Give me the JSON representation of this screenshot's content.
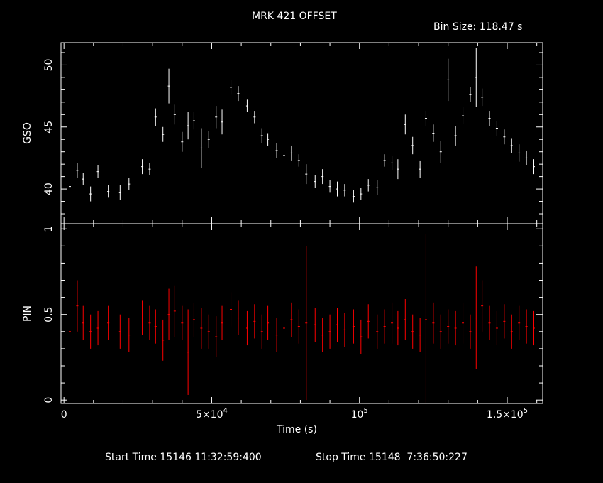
{
  "chart_data": {
    "type": "line",
    "title": "MRK 421 OFFSET",
    "bin_size_label": "Bin Size:",
    "bin_size_value": "118.47 s",
    "xlabel": "Time (s)",
    "xlim": [
      -1000,
      162000
    ],
    "x_ticks": [
      {
        "value": 0,
        "label": "0",
        "exp": ""
      },
      {
        "value": 50000,
        "label": "5×10",
        "exp": "4"
      },
      {
        "value": 100000,
        "label": "10",
        "exp": "5"
      },
      {
        "value": 150000,
        "label": "1.5×10",
        "exp": "5"
      }
    ],
    "start_label": "Start Time",
    "start_value": "15146 11:32:59:400",
    "stop_label": "Stop Time",
    "stop_value": "15148  7:36:50:227",
    "panels": [
      {
        "ylabel": "GSO",
        "ylim": [
          37.2,
          51.8
        ],
        "y_ticks": [
          40,
          45,
          50
        ],
        "color": "#ffffff",
        "series": {
          "x": [
            2000,
            4500,
            6500,
            9000,
            11500,
            15000,
            19000,
            22000,
            26500,
            29000,
            31000,
            33500,
            35500,
            37500,
            40000,
            42000,
            44000,
            46500,
            49000,
            51500,
            53500,
            56500,
            59000,
            62000,
            64500,
            67000,
            69000,
            72000,
            74500,
            77000,
            79500,
            82000,
            85000,
            87500,
            90000,
            92500,
            95000,
            98000,
            100500,
            103000,
            106000,
            108500,
            111000,
            113000,
            115500,
            118000,
            120500,
            122500,
            125000,
            127500,
            130000,
            132500,
            135000,
            137500,
            139500,
            141500,
            144000,
            146500,
            149000,
            151500,
            154000,
            156500,
            159000
          ],
          "y": [
            40.2,
            41.5,
            40.8,
            39.6,
            41.4,
            39.8,
            39.7,
            40.4,
            41.8,
            41.6,
            45.8,
            44.4,
            48.3,
            46.0,
            43.8,
            45.1,
            45.5,
            43.3,
            44.0,
            45.8,
            45.4,
            48.2,
            47.7,
            46.7,
            45.8,
            44.3,
            44.0,
            43.1,
            42.7,
            42.9,
            42.3,
            41.2,
            40.6,
            41.0,
            40.2,
            40.0,
            39.9,
            39.4,
            39.6,
            40.3,
            40.1,
            42.3,
            42.1,
            41.6,
            45.2,
            43.5,
            41.6,
            45.7,
            44.5,
            43.0,
            48.8,
            44.3,
            45.9,
            47.6,
            49.0,
            47.4,
            45.7,
            44.9,
            44.2,
            43.5,
            42.9,
            42.5,
            41.8
          ],
          "err": [
            0.5,
            0.6,
            0.5,
            0.6,
            0.5,
            0.5,
            0.6,
            0.5,
            0.6,
            0.5,
            0.7,
            0.6,
            1.4,
            0.8,
            0.8,
            1.1,
            0.7,
            1.6,
            0.7,
            0.9,
            1.0,
            0.6,
            0.6,
            0.5,
            0.5,
            0.6,
            0.5,
            0.6,
            0.5,
            0.6,
            0.5,
            0.8,
            0.5,
            0.6,
            0.5,
            0.6,
            0.5,
            0.5,
            0.5,
            0.5,
            0.6,
            0.5,
            0.6,
            0.8,
            0.8,
            0.7,
            0.7,
            0.6,
            0.7,
            0.9,
            1.7,
            0.8,
            0.7,
            0.6,
            2.4,
            0.7,
            0.6,
            0.6,
            0.6,
            0.6,
            0.7,
            0.6,
            0.6
          ]
        }
      },
      {
        "ylabel": "PIN",
        "ylim": [
          -0.02,
          1.03
        ],
        "y_ticks": [
          0,
          0.5,
          1
        ],
        "color": "#ff0000",
        "series": {
          "x": [
            2000,
            4500,
            6500,
            9000,
            11500,
            15000,
            19000,
            22000,
            26500,
            29000,
            31000,
            33500,
            35500,
            37500,
            40000,
            42000,
            44000,
            46500,
            49000,
            51500,
            53500,
            56500,
            59000,
            62000,
            64500,
            67000,
            69000,
            72000,
            74500,
            77000,
            79500,
            82000,
            85000,
            87500,
            90000,
            92500,
            95000,
            98000,
            100500,
            103000,
            106000,
            108500,
            111000,
            113000,
            115500,
            118000,
            120500,
            122500,
            125000,
            127500,
            130000,
            132500,
            135000,
            137500,
            139500,
            141500,
            144000,
            146500,
            149000,
            151500,
            154000,
            156500,
            159000
          ],
          "y": [
            0.4,
            0.55,
            0.45,
            0.4,
            0.42,
            0.45,
            0.4,
            0.38,
            0.48,
            0.45,
            0.43,
            0.35,
            0.5,
            0.52,
            0.45,
            0.28,
            0.47,
            0.42,
            0.4,
            0.37,
            0.45,
            0.53,
            0.48,
            0.42,
            0.46,
            0.4,
            0.45,
            0.38,
            0.42,
            0.47,
            0.43,
            0.45,
            0.44,
            0.38,
            0.4,
            0.44,
            0.41,
            0.43,
            0.37,
            0.46,
            0.4,
            0.43,
            0.45,
            0.42,
            0.47,
            0.4,
            0.38,
            0.47,
            0.45,
            0.4,
            0.43,
            0.42,
            0.45,
            0.4,
            0.48,
            0.55,
            0.45,
            0.42,
            0.46,
            0.4,
            0.45,
            0.43,
            0.42
          ],
          "err": [
            0.1,
            0.15,
            0.1,
            0.1,
            0.1,
            0.1,
            0.1,
            0.1,
            0.1,
            0.1,
            0.1,
            0.12,
            0.15,
            0.15,
            0.1,
            0.25,
            0.1,
            0.12,
            0.1,
            0.12,
            0.1,
            0.1,
            0.1,
            0.1,
            0.1,
            0.1,
            0.1,
            0.1,
            0.1,
            0.1,
            0.1,
            0.45,
            0.1,
            0.1,
            0.1,
            0.1,
            0.1,
            0.1,
            0.1,
            0.1,
            0.1,
            0.1,
            0.12,
            0.1,
            0.12,
            0.1,
            0.1,
            0.5,
            0.12,
            0.1,
            0.1,
            0.1,
            0.12,
            0.1,
            0.3,
            0.15,
            0.1,
            0.1,
            0.1,
            0.1,
            0.1,
            0.1,
            0.1
          ]
        }
      }
    ]
  }
}
